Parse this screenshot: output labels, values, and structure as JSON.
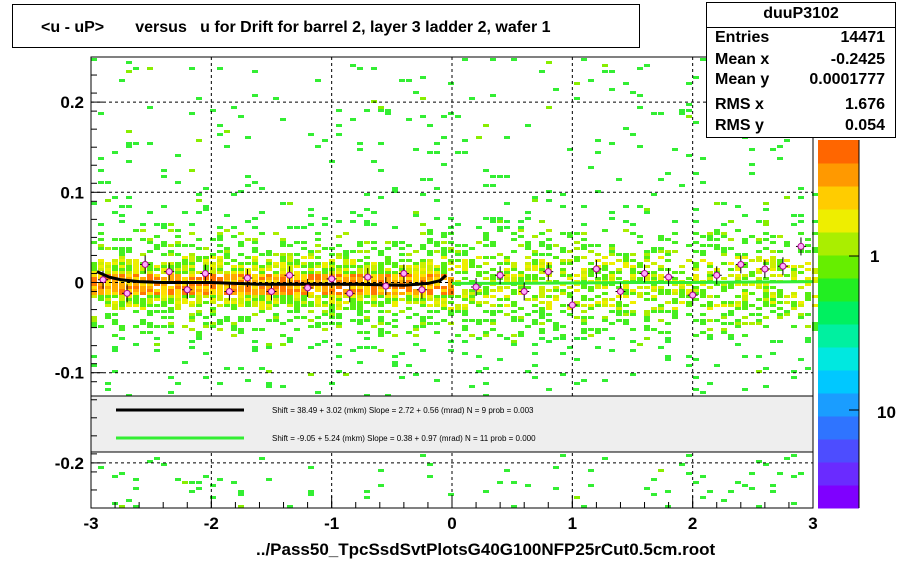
{
  "title": "<u - uP>       versus   u for Drift for barrel 2, layer 3 ladder 2, wafer 1",
  "stats": {
    "name": "duuP3102",
    "rows": [
      {
        "label": "Entries",
        "value": "14471"
      },
      {
        "label": "Mean x",
        "value": "-0.2425"
      },
      {
        "label": "Mean y",
        "value": "0.0001777"
      },
      {
        "label": "RMS x",
        "value": "1.676"
      },
      {
        "label": "RMS y",
        "value": "0.054"
      }
    ]
  },
  "footer": "../Pass50_TpcSsdSvtPlotsG40G100NFP25rCut0.5cm.root",
  "legend": [
    {
      "color": "#000000",
      "text": "Shift =    38.49 + 3.02 (mkm) Slope =    2.72 + 0.56 (mrad)  N = 9 prob = 0.003"
    },
    {
      "color": "#33ee33",
      "text": "Shift =    -9.05 + 5.24 (mkm) Slope =    0.38 + 0.97 (mrad)  N = 11 prob = 0.000"
    }
  ],
  "colorbar_labels": [
    "1",
    "10"
  ],
  "chart_data": {
    "type": "heatmap",
    "xlim": [
      -3,
      3
    ],
    "ylim": [
      -0.25,
      0.25
    ],
    "x_ticks": [
      "-3",
      "-2",
      "-1",
      "0",
      "1",
      "2",
      "3"
    ],
    "y_ticks": [
      "0.2",
      "0.1",
      "0",
      "-0.1",
      "-0.2"
    ],
    "grid": true,
    "colorbar_colors": [
      "#7f00ff",
      "#6a2bff",
      "#4d4dff",
      "#2f74ff",
      "#1a9dff",
      "#00c8ff",
      "#00e8e0",
      "#00f0a0",
      "#00f060",
      "#22ee22",
      "#66ee00",
      "#aaee00",
      "#eeee00",
      "#ffcc00",
      "#ff9900",
      "#ff6600"
    ],
    "series": [
      {
        "name": "left fit",
        "color": "#000000",
        "x": [
          -2.95,
          -2.85,
          -2.75,
          -2.6,
          -2.4,
          -2.0,
          -1.6,
          -1.2,
          -0.8,
          -0.4,
          -0.2,
          -0.1,
          -0.05
        ],
        "y": [
          0.012,
          0.006,
          0.003,
          0.001,
          0.0,
          0.0,
          -0.002,
          -0.002,
          -0.002,
          -0.003,
          -0.001,
          0.002,
          0.008
        ]
      },
      {
        "name": "right fit",
        "color": "#33ee33",
        "x": [
          0.0,
          0.5,
          1.0,
          1.5,
          2.0,
          2.5,
          3.0
        ],
        "y": [
          -0.001,
          -0.001,
          -0.0005,
          0.0,
          0.0,
          0.0005,
          0.001
        ]
      }
    ],
    "profile_points": {
      "x": [
        -2.9,
        -2.7,
        -2.55,
        -2.35,
        -2.2,
        -2.05,
        -1.85,
        -1.7,
        -1.5,
        -1.35,
        -1.2,
        -1.0,
        -0.85,
        -0.7,
        -0.55,
        -0.4,
        -0.25,
        0.2,
        0.4,
        0.6,
        0.8,
        1.0,
        1.2,
        1.4,
        1.6,
        1.8,
        2.0,
        2.2,
        2.4,
        2.6,
        2.75,
        2.9
      ],
      "y": [
        0.003,
        -0.012,
        0.02,
        0.012,
        -0.008,
        0.01,
        -0.01,
        0.005,
        -0.01,
        0.008,
        -0.006,
        0.004,
        -0.012,
        0.006,
        -0.004,
        0.01,
        -0.008,
        -0.005,
        0.008,
        -0.01,
        0.012,
        -0.025,
        0.015,
        -0.01,
        0.01,
        0.006,
        -0.014,
        0.008,
        0.02,
        0.015,
        0.018,
        0.04
      ]
    }
  }
}
